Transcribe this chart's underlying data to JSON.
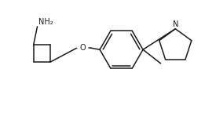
{
  "background": "#ffffff",
  "figsize": [
    2.61,
    1.53
  ],
  "dpi": 100,
  "line_color": "#1a1a1a",
  "lw": 1.1,
  "font_size": 7.0,
  "xlim": [
    0,
    261
  ],
  "ylim": [
    0,
    153
  ]
}
